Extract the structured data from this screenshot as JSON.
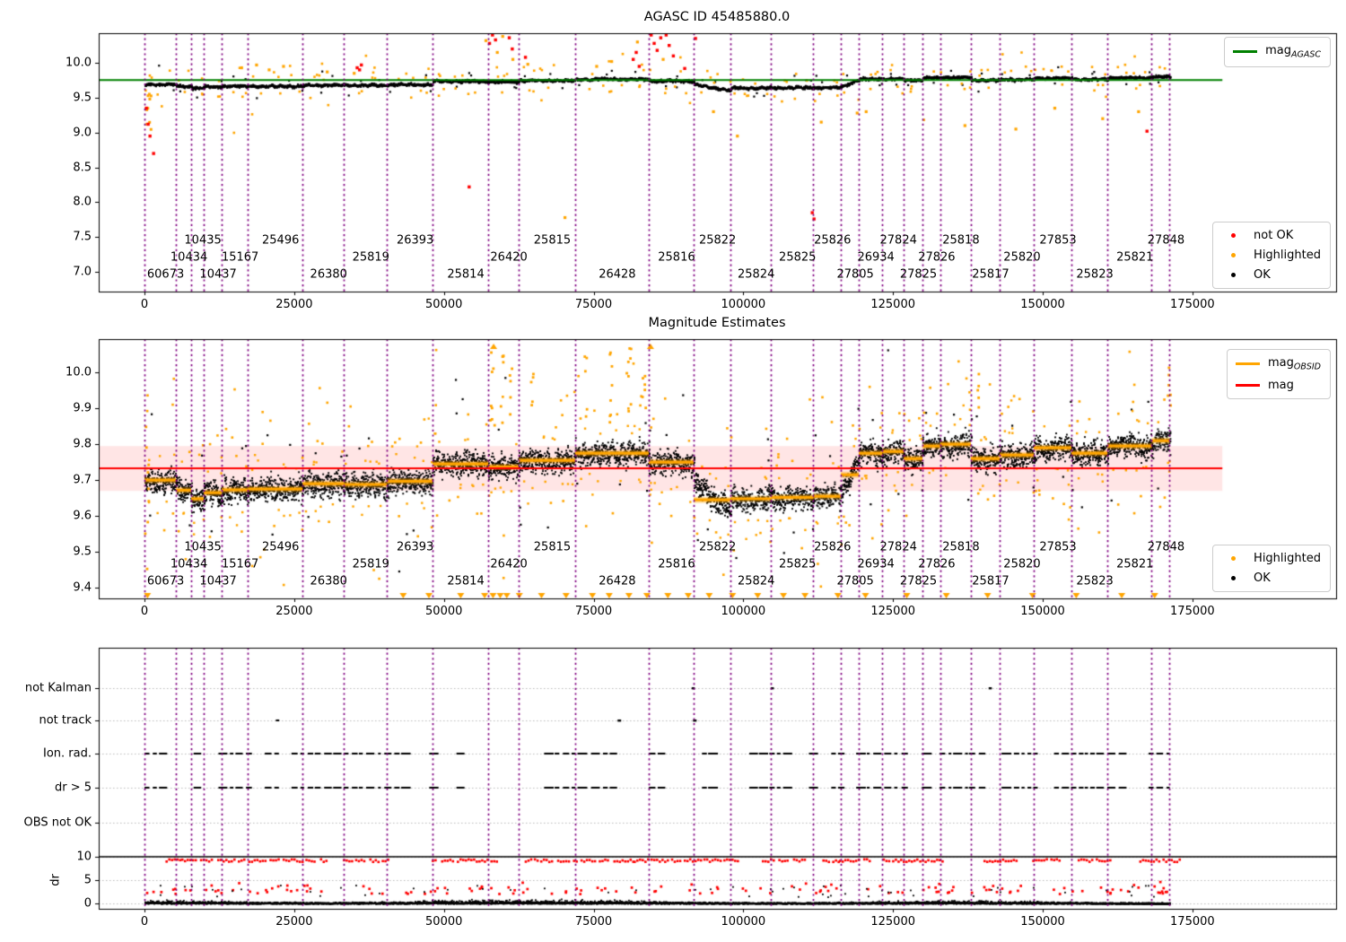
{
  "colors": {
    "purple": "#800080",
    "green": "#008000",
    "red": "#ff0000",
    "orange": "#ffa500",
    "black": "#000000",
    "band": "rgba(255,0,0,0.10)",
    "grid": "#bbbbbb"
  },
  "xticks": {
    "values": [
      0,
      25000,
      50000,
      75000,
      100000,
      125000,
      150000,
      175000
    ],
    "labels": [
      "0",
      "25000",
      "50000",
      "75000",
      "100000",
      "125000",
      "150000",
      "175000"
    ]
  },
  "observations": [
    {
      "obsid": "60673",
      "x0": 0,
      "x1": 5250,
      "mag": 9.7
    },
    {
      "obsid": "10434",
      "x0": 5250,
      "x1": 7800,
      "mag": 9.672
    },
    {
      "obsid": "10435",
      "x0": 7800,
      "x1": 9900,
      "mag": 9.648
    },
    {
      "obsid": "10437",
      "x0": 9900,
      "x1": 12900,
      "mag": 9.665
    },
    {
      "obsid": "15167",
      "x0": 12900,
      "x1": 17250,
      "mag": 9.673
    },
    {
      "obsid": "25496",
      "x0": 17250,
      "x1": 26400,
      "mag": 9.675
    },
    {
      "obsid": "26380",
      "x0": 26400,
      "x1": 33300,
      "mag": 9.69
    },
    {
      "obsid": "25819",
      "x0": 33300,
      "x1": 40500,
      "mag": 9.688
    },
    {
      "obsid": "26393",
      "x0": 40500,
      "x1": 48100,
      "mag": 9.697
    },
    {
      "obsid": "25814",
      "x0": 48100,
      "x1": 57400,
      "mag": 9.745
    },
    {
      "obsid": "26420",
      "x0": 57400,
      "x1": 62500,
      "mag": 9.737
    },
    {
      "obsid": "25815",
      "x0": 62500,
      "x1": 71900,
      "mag": 9.755
    },
    {
      "obsid": "26428",
      "x0": 71900,
      "x1": 84200,
      "mag": 9.775
    },
    {
      "obsid": "25816",
      "x0": 84200,
      "x1": 91700,
      "mag": 9.75
    },
    {
      "obsid": "25822",
      "x0": 91700,
      "x1": 97900,
      "mag": 9.645,
      "mag2": 9.615,
      "magStart": 9.695
    },
    {
      "obsid": "25824",
      "x0": 97900,
      "x1": 104600,
      "mag": 9.648
    },
    {
      "obsid": "25825",
      "x0": 104600,
      "x1": 111700,
      "mag": 9.652
    },
    {
      "obsid": "25826",
      "x0": 111700,
      "x1": 116300,
      "mag": 9.655
    },
    {
      "obsid": "27805",
      "x0": 116300,
      "x1": 119300,
      "mag": 9.715,
      "mag2": 9.765,
      "magStart": 9.665
    },
    {
      "obsid": "26934",
      "x0": 119300,
      "x1": 123200,
      "mag": 9.775
    },
    {
      "obsid": "27824",
      "x0": 123200,
      "x1": 126800,
      "mag": 9.78
    },
    {
      "obsid": "27825",
      "x0": 126800,
      "x1": 129900,
      "mag": 9.76
    },
    {
      "obsid": "27826",
      "x0": 129900,
      "x1": 132900,
      "mag": 9.795
    },
    {
      "obsid": "25818",
      "x0": 132900,
      "x1": 138000,
      "mag": 9.8
    },
    {
      "obsid": "25817",
      "x0": 138000,
      "x1": 142800,
      "mag": 9.76
    },
    {
      "obsid": "25820",
      "x0": 142800,
      "x1": 148500,
      "mag": 9.77
    },
    {
      "obsid": "27853",
      "x0": 148500,
      "x1": 154800,
      "mag": 9.79
    },
    {
      "obsid": "25823",
      "x0": 154800,
      "x1": 160800,
      "mag": 9.775
    },
    {
      "obsid": "25821",
      "x0": 160800,
      "x1": 168200,
      "mag": 9.795
    },
    {
      "obsid": "27848",
      "x0": 168200,
      "x1": 171200,
      "mag": 9.81
    }
  ],
  "chart_data": [
    {
      "type": "scatter",
      "id": "mags",
      "title": "AGASC ID 45485880.0",
      "ylim": [
        6.717,
        10.425
      ],
      "ytick_values": [
        10.0,
        9.5,
        9.0,
        8.5,
        8.0,
        7.5,
        7.0
      ],
      "ytick_labels": [
        "10.0",
        "9.5",
        "9.0",
        "8.5",
        "8.0",
        "7.5",
        "7.0"
      ],
      "xlim": [
        -7650,
        199000
      ],
      "legend_line": [
        {
          "type": "line",
          "color": "#008000",
          "main": "mag",
          "sub": "AGASC"
        }
      ],
      "legend_points": [
        {
          "type": "dot",
          "color": "#ff0000",
          "main": "not OK"
        },
        {
          "type": "dot",
          "color": "#ffa500",
          "main": "Highlighted"
        },
        {
          "type": "dot",
          "color": "#000000",
          "main": "OK"
        }
      ],
      "ref_line": {
        "y": 9.752,
        "x0": -7650,
        "x1": 180000,
        "color": "#008000"
      },
      "red_points": [
        [
          300,
          9.35
        ],
        [
          600,
          9.12
        ],
        [
          900,
          8.95
        ],
        [
          1500,
          8.7
        ],
        [
          35500,
          9.93
        ],
        [
          36200,
          9.97
        ],
        [
          35900,
          9.9
        ],
        [
          54200,
          8.22
        ],
        [
          57600,
          10.28
        ],
        [
          58100,
          10.4
        ],
        [
          58600,
          10.33
        ],
        [
          60900,
          10.36
        ],
        [
          61400,
          10.2
        ],
        [
          63600,
          10.08
        ],
        [
          81600,
          10.05
        ],
        [
          82100,
          10.15
        ],
        [
          82600,
          9.95
        ],
        [
          84600,
          10.4
        ],
        [
          85100,
          10.28
        ],
        [
          85600,
          10.18
        ],
        [
          86200,
          10.36
        ],
        [
          87100,
          10.4
        ],
        [
          87600,
          10.25
        ],
        [
          88300,
          10.1
        ],
        [
          90200,
          9.92
        ],
        [
          92000,
          10.35
        ],
        [
          111500,
          7.85
        ],
        [
          111800,
          7.76
        ],
        [
          167400,
          9.02
        ]
      ],
      "orange_points": [
        [
          16200,
          9.93
        ],
        [
          18700,
          9.97
        ],
        [
          20800,
          9.9
        ],
        [
          23200,
          9.95
        ],
        [
          30500,
          9.87
        ],
        [
          35000,
          9.85
        ],
        [
          57000,
          10.32
        ],
        [
          58900,
          10.15
        ],
        [
          59800,
          10.38
        ],
        [
          61500,
          10.05
        ],
        [
          64000,
          9.98
        ],
        [
          70200,
          7.78
        ],
        [
          75500,
          9.95
        ],
        [
          78000,
          10.02
        ],
        [
          82300,
          10.3
        ],
        [
          86600,
          10.05
        ],
        [
          95000,
          9.3
        ],
        [
          99000,
          8.95
        ],
        [
          113000,
          9.15
        ],
        [
          119000,
          9.28
        ],
        [
          120500,
          9.3
        ],
        [
          137000,
          9.1
        ],
        [
          145500,
          9.05
        ],
        [
          152000,
          9.35
        ],
        [
          160000,
          9.2
        ],
        [
          166000,
          9.3
        ]
      ]
    },
    {
      "type": "scatter",
      "id": "estimates",
      "title": "Magnitude Estimates",
      "ylim": [
        9.3705,
        10.093
      ],
      "ytick_values": [
        10.0,
        9.9,
        9.8,
        9.7,
        9.6,
        9.5,
        9.4
      ],
      "ytick_labels": [
        "10.0",
        "9.9",
        "9.8",
        "9.7",
        "9.6",
        "9.5",
        "9.4"
      ],
      "xlim": [
        -7650,
        199000
      ],
      "legend_line": [
        {
          "type": "line",
          "color": "#ffa500",
          "main": "mag",
          "sub": "OBSID"
        },
        {
          "type": "line",
          "color": "#ff0000",
          "main": "mag"
        }
      ],
      "legend_points": [
        {
          "type": "dot",
          "color": "#ffa500",
          "main": "Highlighted"
        },
        {
          "type": "dot",
          "color": "#000000",
          "main": "OK"
        }
      ],
      "mag_line": {
        "y": 9.733,
        "x0": -7650,
        "x1": 180000,
        "color": "#ff0000"
      },
      "band": {
        "y0": 9.67,
        "y1": 9.795,
        "x0": -7650,
        "x1": 180000
      },
      "clip_low_x": [
        500,
        43200,
        47500,
        52800,
        56800,
        58200,
        59400,
        60500,
        62600,
        66300,
        70400,
        74800,
        77600,
        80900,
        83900,
        87400,
        90800,
        94300,
        98200,
        102400,
        106700,
        110300,
        115800,
        120400,
        127300,
        133900,
        140800,
        148300,
        155600,
        163200,
        168700
      ],
      "clip_high_x": [
        58300,
        84500
      ],
      "spike_columns": [
        [
          300,
          10,
          9.45,
          9.88
        ],
        [
          57800,
          8,
          9.85,
          10.07
        ],
        [
          59500,
          6,
          9.85,
          10.05
        ],
        [
          61000,
          5,
          9.88,
          10.06
        ],
        [
          64500,
          5,
          9.86,
          10.02
        ],
        [
          73500,
          5,
          9.88,
          10.05
        ],
        [
          77700,
          7,
          9.86,
          10.07
        ],
        [
          80700,
          8,
          9.88,
          10.08
        ],
        [
          83200,
          6,
          9.86,
          10.04
        ],
        [
          139300,
          5,
          9.88,
          10.0
        ],
        [
          171000,
          6,
          9.88,
          10.05
        ]
      ]
    },
    {
      "type": "scatter",
      "id": "flags",
      "rows": [
        "not Kalman",
        "not track",
        "Ion. rad.",
        "dr > 5",
        "OBS not OK"
      ],
      "dr_axis": {
        "label": "dr",
        "tick_labels": [
          "10",
          "5",
          "0"
        ],
        "tick_values": [
          10,
          5,
          0
        ],
        "ref_line": 10
      },
      "flag_marks": {
        "not_kalman_x": [
          91600,
          104800,
          141200
        ],
        "not_track_ranges": [
          [
            13500,
            22500
          ]
        ],
        "not_track_x": [
          79300,
          91900
        ],
        "ion_rad_range": [
          0,
          171200
        ],
        "dr_gt5_range": [
          0,
          171200
        ],
        "obs_not_ok_x": []
      },
      "dr_data": {
        "range": [
          0,
          171200
        ],
        "clip_value": 10,
        "cloud_max": 4
      }
    }
  ]
}
